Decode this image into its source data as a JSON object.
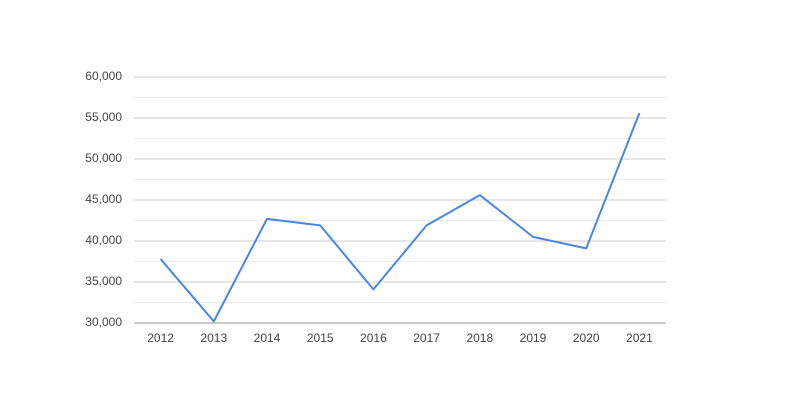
{
  "chart_data": {
    "type": "line",
    "categories": [
      "2012",
      "2013",
      "2014",
      "2015",
      "2016",
      "2017",
      "2018",
      "2019",
      "2020",
      "2021"
    ],
    "series": [
      {
        "color": "#4a86e8",
        "values": [
          37800,
          30200,
          42700,
          41900,
          34100,
          41900,
          45600,
          40500,
          39100,
          55600
        ]
      }
    ],
    "ylim": [
      30000,
      60000
    ],
    "yticks": [
      {
        "value": 30000,
        "label": "30,000"
      },
      {
        "value": 35000,
        "label": "35,000"
      },
      {
        "value": 40000,
        "label": "40,000"
      },
      {
        "value": 45000,
        "label": "45,000"
      },
      {
        "value": 50000,
        "label": "50,000"
      },
      {
        "value": 55000,
        "label": "55,000"
      },
      {
        "value": 60000,
        "label": "60,000"
      }
    ],
    "grid": true
  }
}
